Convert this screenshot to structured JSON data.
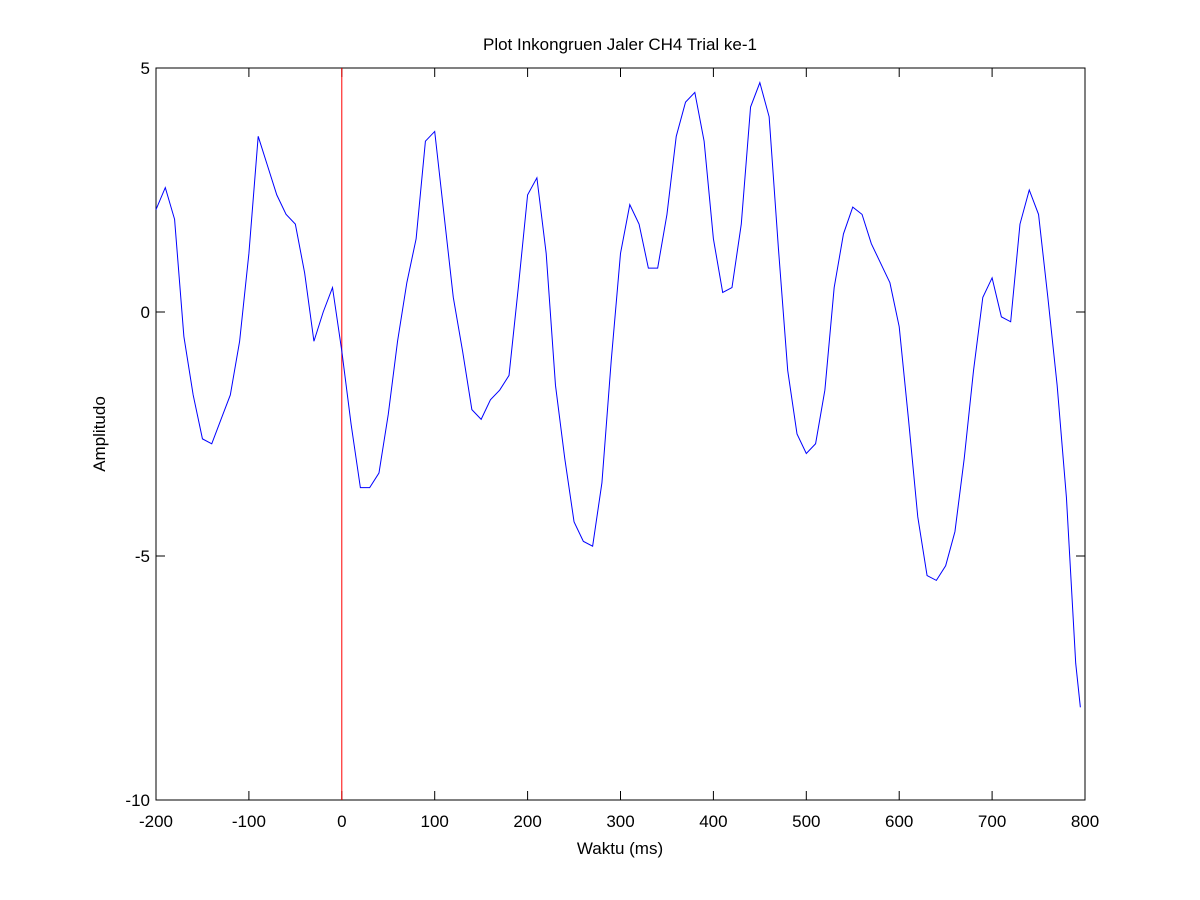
{
  "chart_data": {
    "type": "line",
    "title": "Plot Inkongruen Jaler CH4 Trial ke-1",
    "x_label": "Waktu (ms)",
    "y_label": "Amplitudo",
    "x": [
      -200,
      -190,
      -180,
      -170,
      -160,
      -150,
      -140,
      -130,
      -120,
      -110,
      -100,
      -90,
      -80,
      -70,
      -60,
      -50,
      -40,
      -30,
      -20,
      -10,
      0,
      10,
      20,
      30,
      40,
      50,
      60,
      70,
      80,
      90,
      100,
      110,
      120,
      130,
      140,
      150,
      160,
      170,
      180,
      190,
      200,
      210,
      220,
      230,
      240,
      250,
      260,
      270,
      280,
      290,
      300,
      310,
      320,
      330,
      340,
      350,
      360,
      370,
      380,
      390,
      400,
      410,
      420,
      430,
      440,
      450,
      460,
      470,
      480,
      490,
      500,
      510,
      520,
      530,
      540,
      550,
      560,
      570,
      580,
      590,
      600,
      610,
      620,
      630,
      640,
      650,
      660,
      670,
      680,
      690,
      700,
      710,
      720,
      730,
      740,
      750,
      760,
      770,
      780,
      790,
      795
    ],
    "series": [
      {
        "color": "#0000ff",
        "values": [
          2.1,
          2.55,
          1.9,
          -0.5,
          -1.7,
          -2.6,
          -2.7,
          -2.2,
          -1.7,
          -0.6,
          1.2,
          3.6,
          3.0,
          2.4,
          2.0,
          1.8,
          0.8,
          -0.6,
          0.0,
          0.5,
          -0.8,
          -2.3,
          -3.6,
          -3.6,
          -3.3,
          -2.1,
          -0.6,
          0.6,
          1.5,
          3.5,
          3.7,
          2.0,
          0.3,
          -0.8,
          -2.0,
          -2.2,
          -1.8,
          -1.6,
          -1.3,
          0.5,
          2.4,
          2.75,
          1.2,
          -1.5,
          -3.0,
          -4.3,
          -4.7,
          -4.8,
          -3.5,
          -1.0,
          1.2,
          2.2,
          1.8,
          0.9,
          0.9,
          2.0,
          3.6,
          4.3,
          4.5,
          3.5,
          1.5,
          0.4,
          0.5,
          1.8,
          4.2,
          4.7,
          4.0,
          1.3,
          -1.2,
          -2.5,
          -2.9,
          -2.7,
          -1.6,
          0.5,
          1.6,
          2.15,
          2.0,
          1.4,
          1.0,
          0.6,
          -0.3,
          -2.2,
          -4.2,
          -5.4,
          -5.5,
          -5.2,
          -4.5,
          -3.0,
          -1.2,
          0.3,
          0.7,
          -0.1,
          -0.2,
          1.8,
          2.5,
          2.0,
          0.3,
          -1.5,
          -3.8,
          -7.2,
          -8.1
        ]
      }
    ],
    "reference_lines": [
      {
        "x": 0,
        "color": "#ff0000"
      }
    ],
    "xlim": [
      -200,
      800
    ],
    "xticks": [
      -200,
      -100,
      0,
      100,
      200,
      300,
      400,
      500,
      600,
      700,
      800
    ],
    "ylim": [
      -10,
      5
    ],
    "yticks": [
      -10,
      -5,
      0,
      5
    ]
  }
}
